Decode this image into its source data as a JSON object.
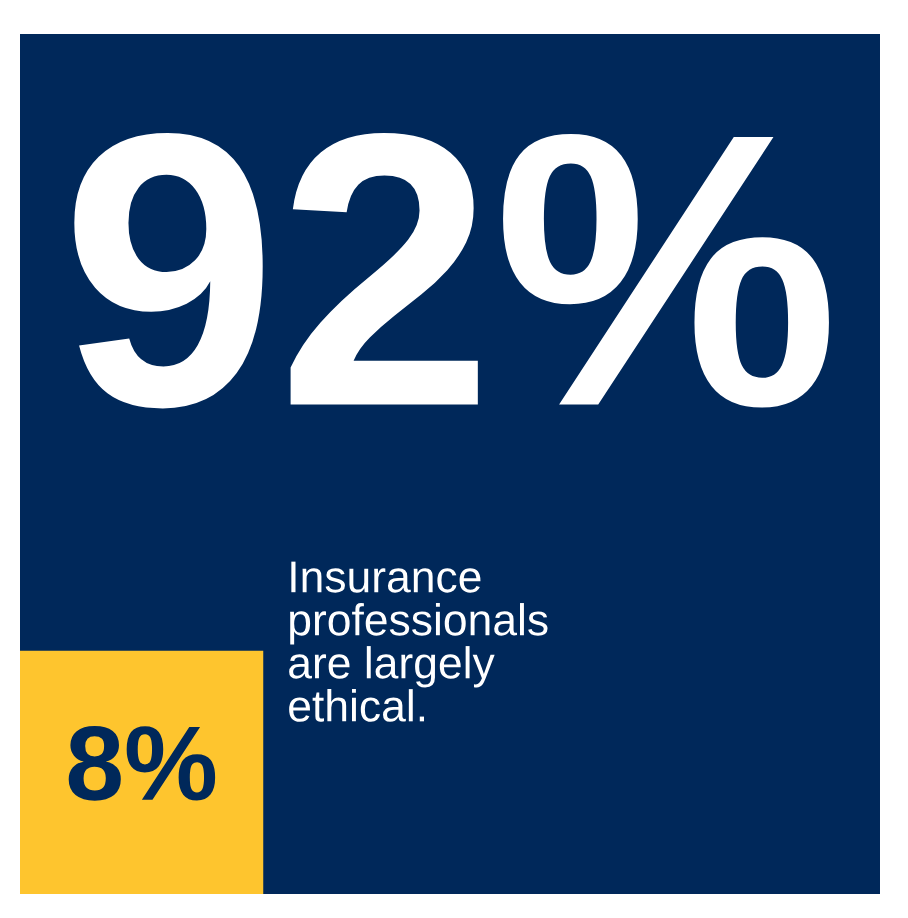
{
  "chart_data": {
    "type": "other",
    "categories": [
      "Insurance\nprofessionals\nare largely\nethical.",
      null
    ],
    "values": [
      92,
      8
    ],
    "value_labels": [
      "92%",
      "8%"
    ],
    "colors": [
      "#00285a",
      "#fec52e"
    ]
  }
}
